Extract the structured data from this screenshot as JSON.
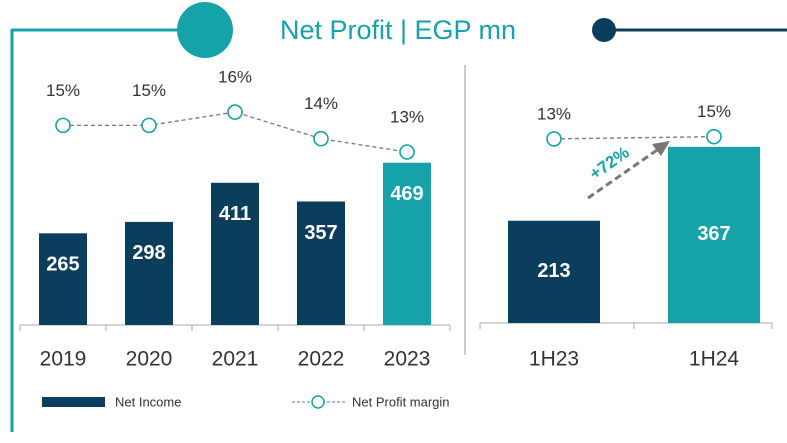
{
  "title": "Net Profit | EGP mn",
  "chart_data": [
    {
      "type": "bar",
      "categories": [
        "2019",
        "2020",
        "2021",
        "2022",
        "2023"
      ],
      "ylim": [
        0,
        500
      ],
      "y2lim": [
        0,
        13
      ],
      "series": [
        {
          "name": "Net Income",
          "color": "#0b3d5c",
          "colors": [
            "#0b3d5c",
            "#0b3d5c",
            "#0b3d5c",
            "#0b3d5c",
            "#16a2a9"
          ],
          "values": [
            265,
            298,
            411,
            357,
            469
          ]
        },
        {
          "name": "Net Profit margin",
          "color": "#16a2a9",
          "axis": "y2",
          "values": [
            15,
            15,
            16,
            14,
            13
          ],
          "value_labels": [
            "15%",
            "15%",
            "16%",
            "14%",
            "13%"
          ]
        }
      ]
    },
    {
      "type": "bar",
      "categories": [
        "1H23",
        "1H24"
      ],
      "ylim": [
        0,
        400
      ],
      "y2lim": [
        -150,
        20
      ],
      "annotation": "+72%",
      "series": [
        {
          "color": "#0b3d5c",
          "colors": [
            "#0b3d5c",
            "#16a2a9"
          ],
          "values": [
            213,
            367
          ]
        },
        {
          "color": "#16a2a9",
          "axis": "y2",
          "values": [
            13,
            15
          ],
          "value_labels": [
            "13%",
            "15%"
          ]
        }
      ]
    }
  ]
}
